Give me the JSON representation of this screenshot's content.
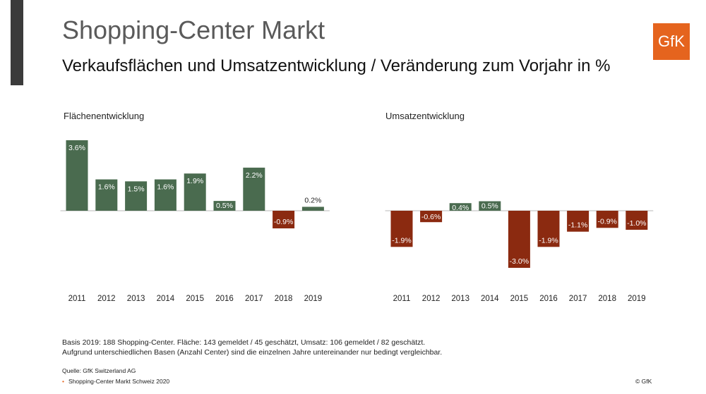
{
  "header": {
    "title": "Shopping-Center Markt",
    "subtitle": "Verkaufsflächen und Umsatzentwicklung / Veränderung zum Vorjahr in %",
    "logo_text": "GfK"
  },
  "colors": {
    "positive": "#4a6b4f",
    "negative": "#8b2a10",
    "accent": "#e5641e",
    "sidebar": "#3b3b3b"
  },
  "chart_data": [
    {
      "type": "bar",
      "title": "Flächenentwicklung",
      "categories": [
        "2011",
        "2012",
        "2013",
        "2014",
        "2015",
        "2016",
        "2017",
        "2018",
        "2019"
      ],
      "values": [
        3.6,
        1.6,
        1.5,
        1.6,
        1.9,
        0.5,
        2.2,
        -0.9,
        0.2
      ],
      "labels": [
        "3.6%",
        "1.6%",
        "1.5%",
        "1.6%",
        "1.9%",
        "0.5%",
        "2.2%",
        "-0.9%",
        "0.2%"
      ],
      "unit": "%",
      "grid": false
    },
    {
      "type": "bar",
      "title": "Umsatzentwicklung",
      "categories": [
        "2011",
        "2012",
        "2013",
        "2014",
        "2015",
        "2016",
        "2017",
        "2018",
        "2019"
      ],
      "values": [
        -1.9,
        -0.6,
        0.4,
        0.5,
        -3.0,
        -1.9,
        -1.1,
        -0.9,
        -1.0
      ],
      "labels": [
        "-1.9%",
        "-0.6%",
        "0.4%",
        "0.5%",
        "-3.0%",
        "-1.9%",
        "-1.1%",
        "-0.9%",
        "-1.0%"
      ],
      "unit": "%",
      "grid": false
    }
  ],
  "footer": {
    "note_1": "Basis 2019: 188 Shopping-Center. Fläche: 143 gemeldet / 45 geschätzt, Umsatz: 106 gemeldet / 82  geschätzt.",
    "note_2": "Aufgrund unterschiedlichen Basen (Anzahl Center) sind die einzelnen Jahre untereinander nur bedingt vergleichbar.",
    "source": "Quelle: GfK Switzerland AG",
    "source_item": "Shopping-Center Markt Schweiz 2020",
    "copyright": "© GfK"
  }
}
